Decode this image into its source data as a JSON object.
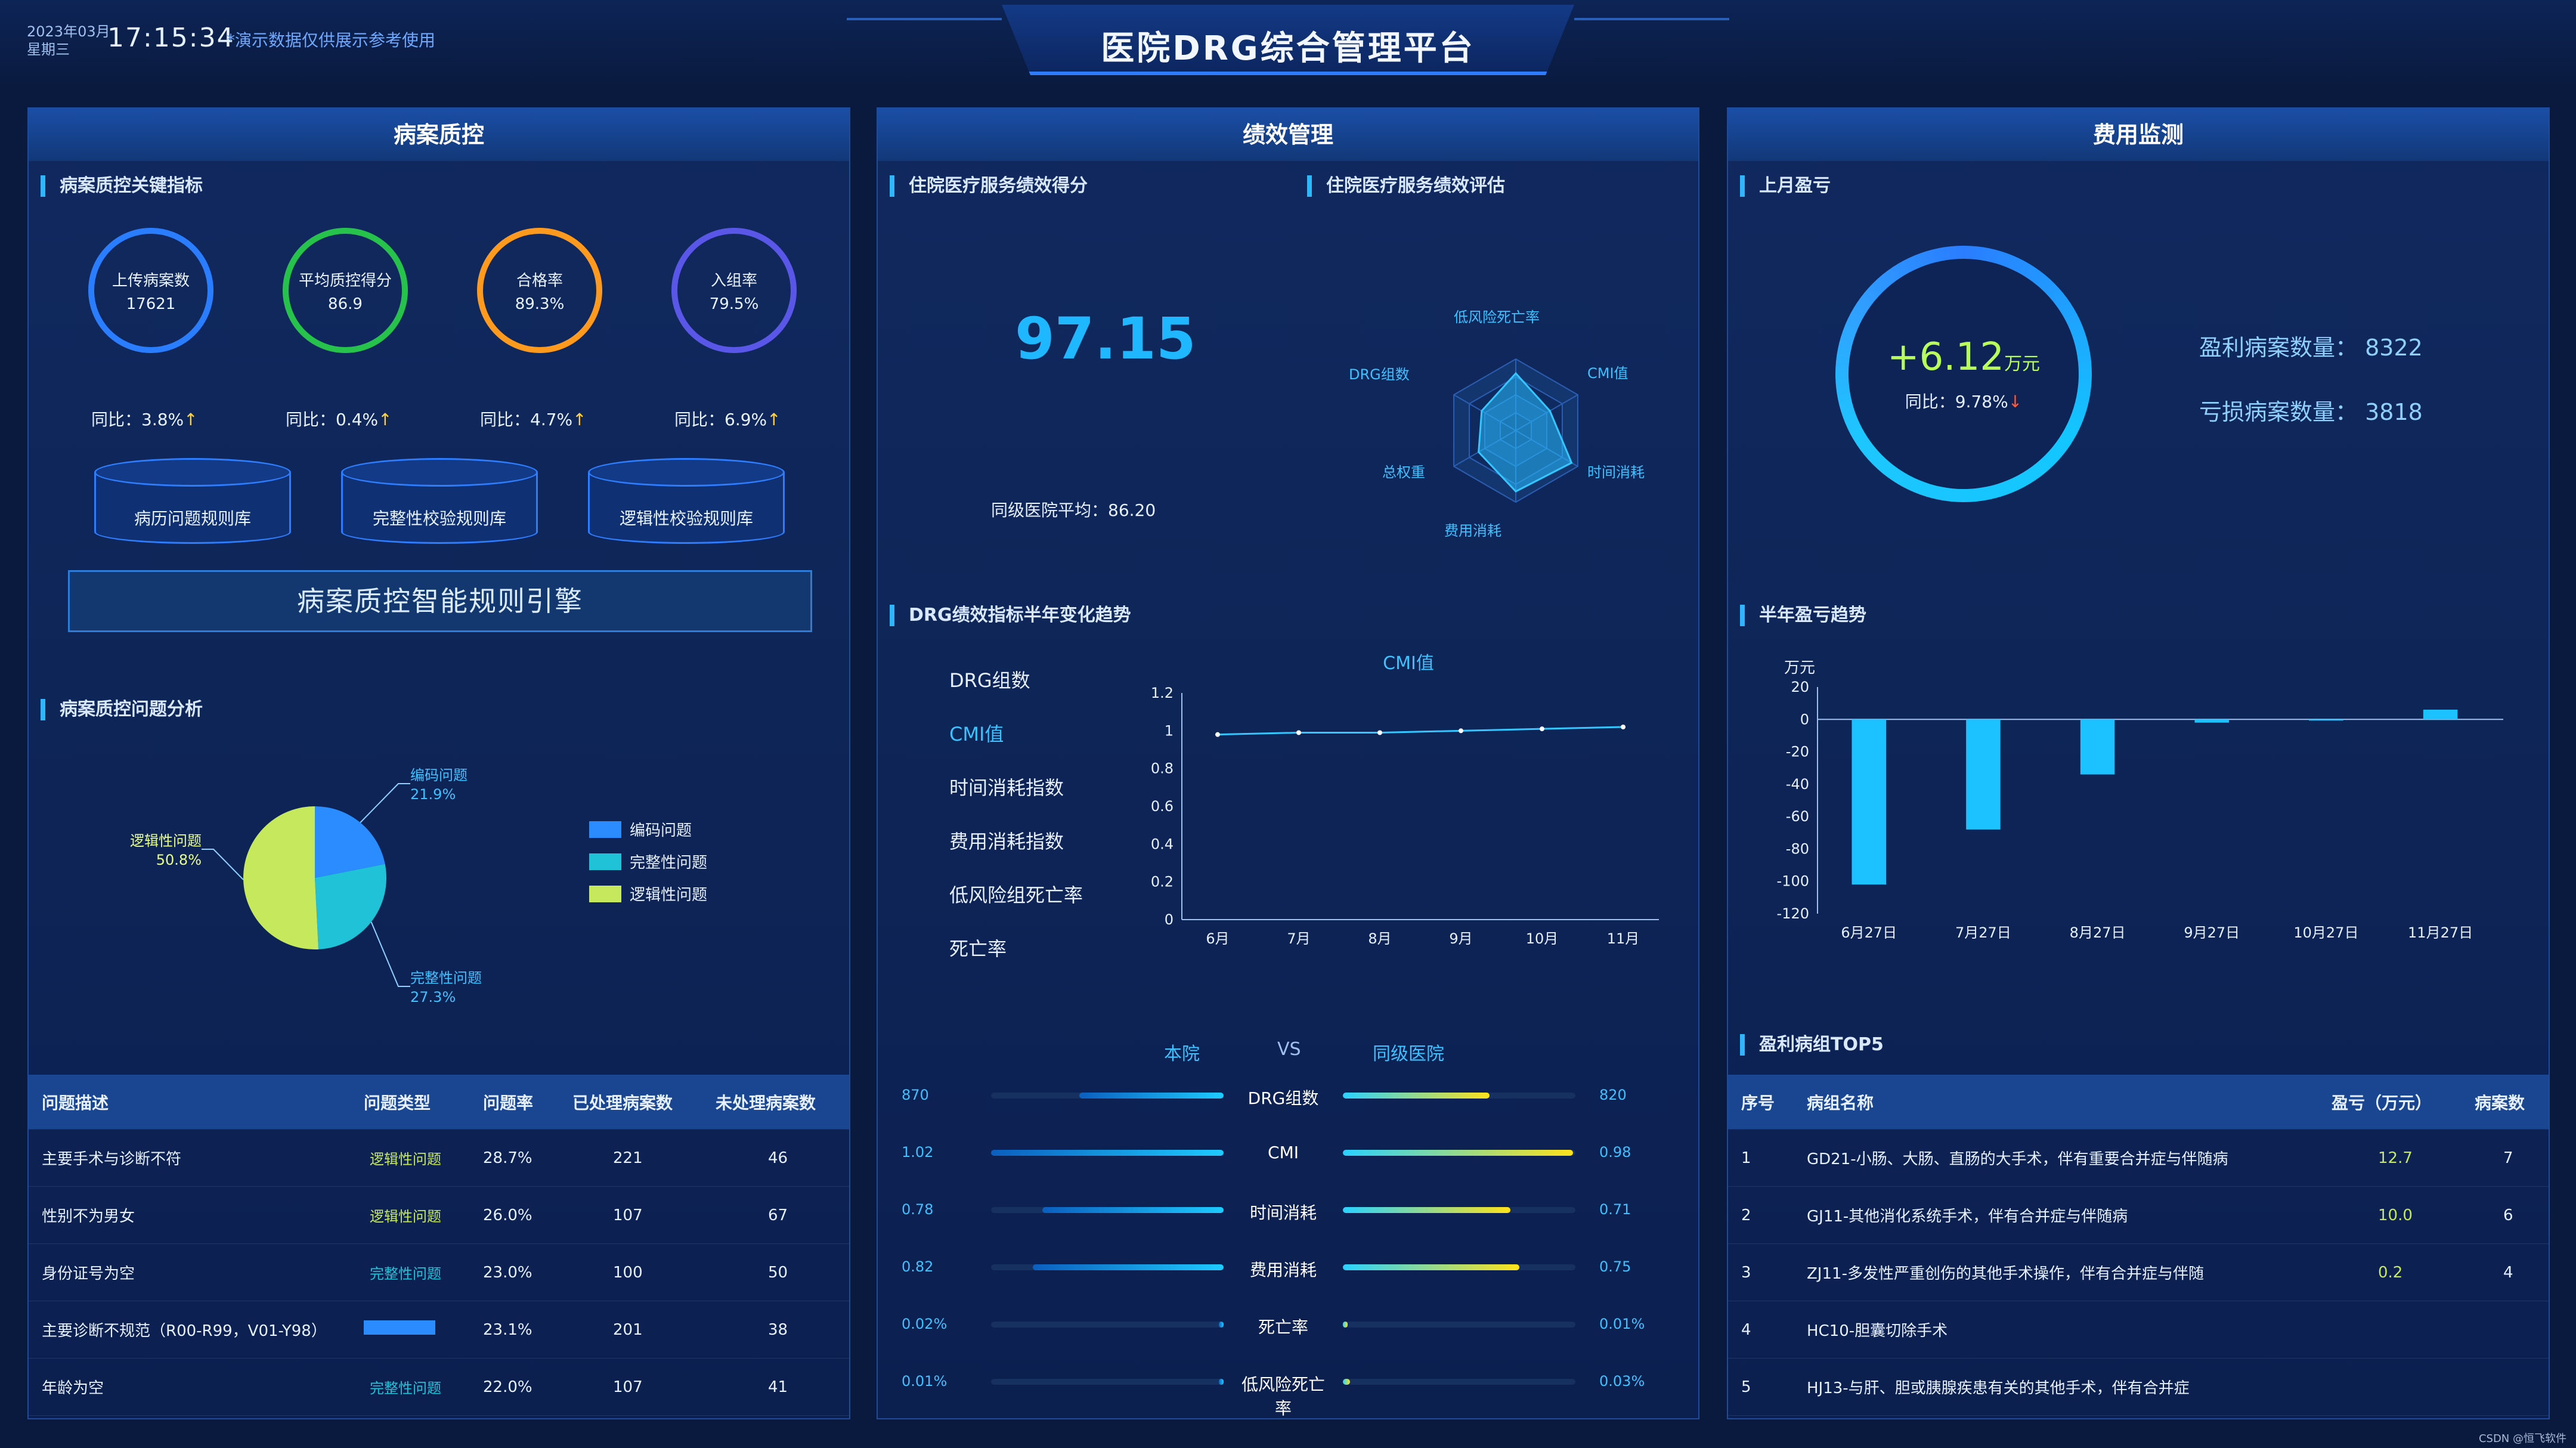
{
  "header": {
    "date": "2023年03月\n星期三",
    "time": "17:15:34",
    "note": "*演示数据仅供展示参考使用",
    "title": "医院DRG综合管理平台"
  },
  "panel_left": {
    "title": "病案质控",
    "kpi_section": "病案质控关键指标",
    "kpis": [
      {
        "label": "上传病案数",
        "value": "17621",
        "yoy": "同比：3.8%",
        "color": "#2a7dff"
      },
      {
        "label": "平均质控得分",
        "value": "86.9",
        "yoy": "同比：0.4%",
        "color": "#27c24c"
      },
      {
        "label": "合格率",
        "value": "89.3%",
        "yoy": "同比：4.7%",
        "color": "#ff9a1f"
      },
      {
        "label": "入组率",
        "value": "79.5%",
        "yoy": "同比：6.9%",
        "color": "#5a56e8"
      }
    ],
    "yoy_arrow": "↑",
    "cylinders": [
      "病历问题规则库",
      "完整性校验规则库",
      "逻辑性校验规则库"
    ],
    "engine": "病案质控智能规则引擎",
    "pie_section": "病案质控问题分析",
    "pie": {
      "slices": [
        {
          "name": "编码问题",
          "value": 21.9,
          "label": "21.9%",
          "color": "#2a8cff"
        },
        {
          "name": "完整性问题",
          "value": 27.3,
          "label": "27.3%",
          "color": "#1fc2d6"
        },
        {
          "name": "逻辑性问题",
          "value": 50.8,
          "label": "50.8%",
          "color": "#c6e85c"
        }
      ],
      "callout_left": "逻辑性问题",
      "callout_right_top": "编码问题",
      "callout_right_bottom": "完整性问题"
    },
    "table": {
      "headers": [
        "问题描述",
        "问题类型",
        "问题率",
        "已处理病案数",
        "未处理病案数"
      ],
      "rows": [
        {
          "desc": "主要手术与诊断不符",
          "type": "逻辑性问题",
          "rate": "28.7%",
          "done": "221",
          "todo": "46",
          "type_color": "#c6e85c"
        },
        {
          "desc": "性别不为男女",
          "type": "逻辑性问题",
          "rate": "26.0%",
          "done": "107",
          "todo": "67",
          "type_color": "#c6e85c"
        },
        {
          "desc": "身份证号为空",
          "type": "完整性问题",
          "rate": "23.0%",
          "done": "100",
          "todo": "50",
          "type_color": "#1fc2d6"
        },
        {
          "desc": "主要诊断不规范（R00-R99，V01-Y98）",
          "type": "",
          "rate": "23.1%",
          "done": "201",
          "todo": "38",
          "type_color": "#2a8cff"
        },
        {
          "desc": "年龄为空",
          "type": "完整性问题",
          "rate": "22.0%",
          "done": "107",
          "todo": "41",
          "type_color": "#1fc2d6"
        }
      ]
    }
  },
  "panel_mid": {
    "title": "绩效管理",
    "score_section": "住院医疗服务绩效得分",
    "score": "97.15",
    "avg": "同级医院平均：86.20",
    "radar_section": "住院医疗服务绩效评估",
    "radar_labels": [
      "低风险死亡率",
      "CMI值",
      "时间消耗",
      "费用消耗",
      "DRG组数",
      "总权重"
    ],
    "trend_section": "DRG绩效指标半年变化趋势",
    "metrics": [
      "DRG组数",
      "CMI值",
      "时间消耗指数",
      "费用消耗指数",
      "低风险组死亡率",
      "死亡率"
    ],
    "active_metric": 1,
    "compare": {
      "left": "本院",
      "vs": "VS",
      "right": "同级医院",
      "rows": [
        {
          "name": "DRG组数",
          "lv": "870",
          "rv": "820",
          "l": 0.62,
          "r": 0.63
        },
        {
          "name": "CMI",
          "lv": "1.02",
          "rv": "0.98",
          "l": 1.0,
          "r": 0.99
        },
        {
          "name": "时间消耗",
          "lv": "0.78",
          "rv": "0.71",
          "l": 0.78,
          "r": 0.72
        },
        {
          "name": "费用消耗",
          "lv": "0.82",
          "rv": "0.75",
          "l": 0.82,
          "r": 0.76
        },
        {
          "name": "死亡率",
          "lv": "0.02%",
          "rv": "0.01%",
          "l": 0.02,
          "r": 0.01
        },
        {
          "name": "低风险死亡率",
          "lv": "0.01%",
          "rv": "0.03%",
          "l": 0.01,
          "r": 0.03
        }
      ]
    }
  },
  "panel_right": {
    "title": "费用监测",
    "profit_section": "上月盈亏",
    "profit_value": "+6.12",
    "profit_unit": "万元",
    "profit_yoy": "同比：9.78%",
    "profit_arrow": "↓",
    "count_profit_label": "盈利病案数量：",
    "count_profit": "8322",
    "count_loss_label": "亏损病案数量：",
    "count_loss": "3818",
    "trend_section": "半年盈亏趋势",
    "top_section": "盈利病组TOP5",
    "top_table": {
      "headers": [
        "序号",
        "病组名称",
        "盈亏（万元）",
        "病案数"
      ],
      "rows": [
        {
          "no": "1",
          "name": "GD21-小肠、大肠、直肠的大手术，伴有重要合并症与伴随病",
          "val": "12.7",
          "cnt": "7"
        },
        {
          "no": "2",
          "name": "GJ11-其他消化系统手术，伴有合并症与伴随病",
          "val": "10.0",
          "cnt": "6"
        },
        {
          "no": "3",
          "name": "ZJ11-多发性严重创伤的其他手术操作，伴有合并症与伴随",
          "val": "0.2",
          "cnt": "4"
        },
        {
          "no": "4",
          "name": "HC10-胆囊切除手术",
          "val": "",
          "cnt": ""
        },
        {
          "no": "5",
          "name": "HJ13-与肝、胆或胰腺疾患有关的其他手术，伴有合并症",
          "val": "",
          "cnt": ""
        }
      ]
    }
  },
  "chart_data": [
    {
      "type": "line",
      "title": "CMI值",
      "x": [
        "6月",
        "7月",
        "8月",
        "9月",
        "10月",
        "11月"
      ],
      "series": [
        {
          "values": [
            0.98,
            0.99,
            0.99,
            1.0,
            1.01,
            1.02
          ]
        }
      ],
      "ylim": [
        0,
        1.2
      ],
      "yticks": [
        0,
        0.2,
        0.4,
        0.6,
        0.8,
        1,
        1.2
      ],
      "ytick_labels": [
        "0",
        "0.2",
        "0.4",
        "0.6",
        "0.8",
        "1",
        "1.2"
      ],
      "grid": false
    },
    {
      "type": "bar",
      "ylabel": "万元",
      "categories": [
        "6月27日",
        "7月27日",
        "8月27日",
        "9月27日",
        "10月27日",
        "11月27日"
      ],
      "values": [
        -102,
        -68,
        -34,
        -2,
        0,
        6
      ],
      "ylim": [
        -120,
        20
      ],
      "yticks": [
        20,
        0,
        -20,
        -40,
        -60,
        -80,
        -100,
        -120
      ],
      "grid": false
    }
  ],
  "colors": {
    "accent": "#1fb7ff",
    "title_bg": "#143a86",
    "panel_border": "#1f4b9a"
  },
  "watermark": "CSDN @恒飞软件"
}
